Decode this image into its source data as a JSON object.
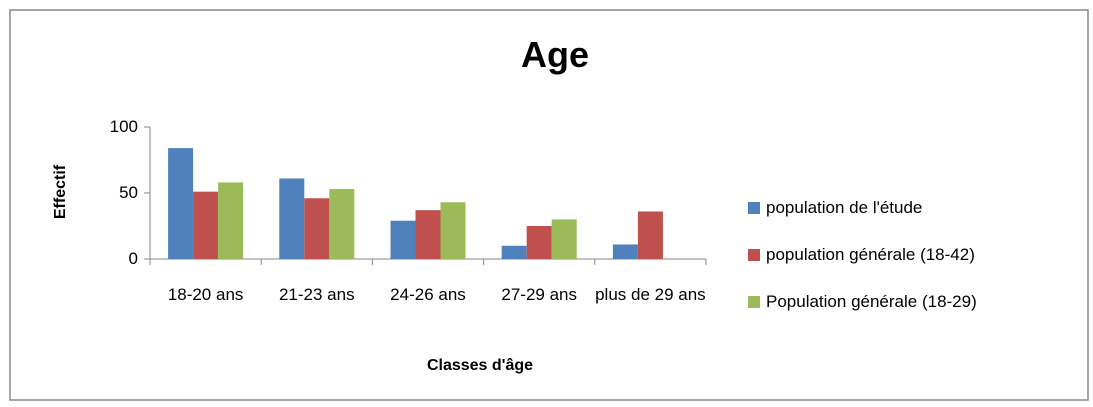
{
  "chart_data": {
    "type": "bar",
    "title": "Age",
    "x_label": "Classes d'âge",
    "y_label": "Effectif",
    "categories": [
      "18-20 ans",
      "21-23 ans",
      "24-26 ans",
      "27-29 ans",
      "plus de 29 ans"
    ],
    "series": [
      {
        "name": "population de l'étude",
        "color": "#4f81bd",
        "values": [
          84,
          61,
          29,
          10,
          11
        ]
      },
      {
        "name": "population générale (18-42)",
        "color": "#c0504d",
        "values": [
          51,
          46,
          37,
          25,
          36
        ]
      },
      {
        "name": "Population générale (18-29)",
        "color": "#9bbb59",
        "values": [
          58,
          53,
          43,
          30,
          null
        ]
      }
    ],
    "ylim": [
      0,
      100
    ],
    "yticks": [
      0,
      50,
      100
    ],
    "grid": false,
    "legend": "right"
  }
}
